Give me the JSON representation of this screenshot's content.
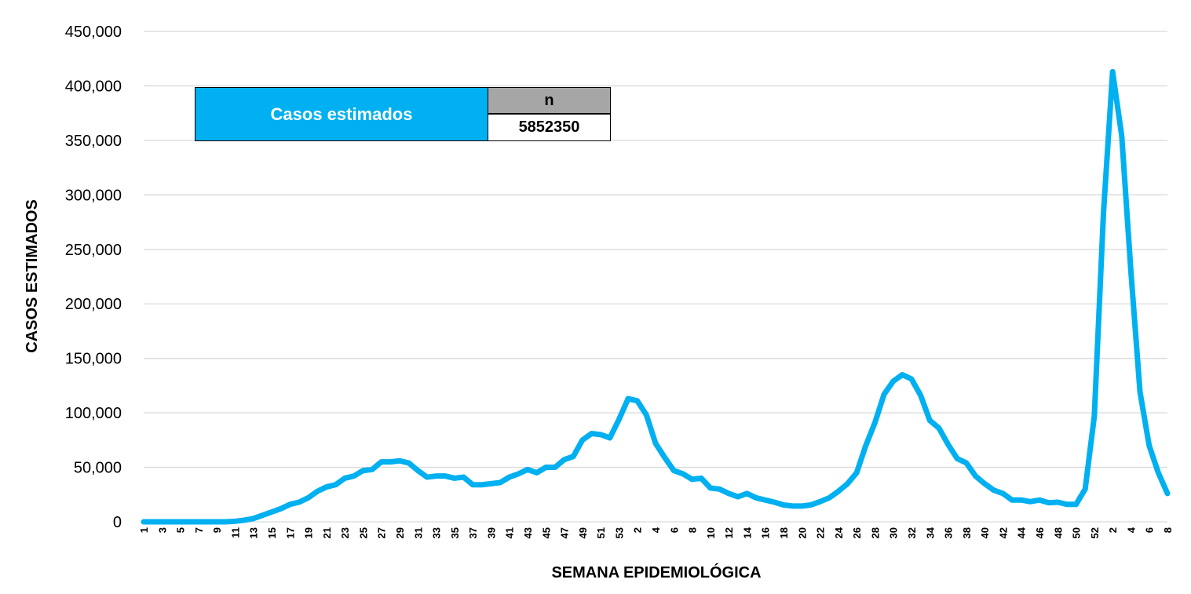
{
  "chart_data": {
    "type": "line",
    "title": "",
    "xlabel": "SEMANA EPIDEMIOLÓGICA",
    "ylabel": "CASOS ESTIMADOS",
    "ylim": [
      0,
      450000
    ],
    "yticks": [
      "0",
      "50,000",
      "100,000",
      "150,000",
      "200,000",
      "250,000",
      "300,000",
      "350,000",
      "400,000",
      "450,000"
    ],
    "grid": true,
    "line_color": "#00b0f0",
    "categories": [
      "1",
      "2",
      "3",
      "4",
      "5",
      "6",
      "7",
      "8",
      "9",
      "10",
      "11",
      "12",
      "13",
      "14",
      "15",
      "16",
      "17",
      "18",
      "19",
      "20",
      "21",
      "22",
      "23",
      "24",
      "25",
      "26",
      "27",
      "28",
      "29",
      "30",
      "31",
      "32",
      "33",
      "34",
      "35",
      "36",
      "37",
      "38",
      "39",
      "40",
      "41",
      "42",
      "43",
      "44",
      "45",
      "46",
      "47",
      "48",
      "49",
      "50",
      "51",
      "52",
      "53",
      "1",
      "2",
      "3",
      "4",
      "5",
      "6",
      "7",
      "8",
      "9",
      "10",
      "11",
      "12",
      "13",
      "14",
      "15",
      "16",
      "17",
      "18",
      "19",
      "20",
      "21",
      "22",
      "23",
      "24",
      "25",
      "26",
      "27",
      "28",
      "29",
      "30",
      "31",
      "32",
      "33",
      "34",
      "35",
      "36",
      "37",
      "38",
      "39",
      "40",
      "41",
      "42",
      "43",
      "44",
      "45",
      "46",
      "47",
      "48",
      "49",
      "50",
      "51",
      "52",
      "1",
      "2",
      "3",
      "4",
      "5",
      "6",
      "7",
      "8"
    ],
    "series": [
      {
        "values": [
          0,
          0,
          0,
          0,
          0,
          0,
          0,
          0,
          0,
          0,
          500,
          1500,
          3000,
          6000,
          9000,
          12000,
          16000,
          18000,
          22000,
          28000,
          32000,
          34000,
          40000,
          42000,
          47000,
          48000,
          55000,
          55000,
          56000,
          54000,
          47000,
          41000,
          42000,
          42000,
          40000,
          41000,
          34000,
          34000,
          35000,
          36000,
          41000,
          44000,
          48000,
          45000,
          50000,
          50000,
          57000,
          60000,
          75000,
          81000,
          80000,
          77000,
          94000,
          113000,
          111000,
          98000,
          72000,
          59000,
          47000,
          44000,
          39000,
          40000,
          31000,
          30000,
          26000,
          23000,
          26000,
          22000,
          20000,
          18000,
          15500,
          14500,
          14500,
          15500,
          18500,
          22000,
          28000,
          35000,
          45000,
          70000,
          91000,
          117000,
          129000,
          135000,
          131000,
          116000,
          93000,
          86000,
          71000,
          58000,
          54000,
          42000,
          35000,
          29000,
          26000,
          20000,
          20000,
          18500,
          20000,
          17500,
          18000,
          16000,
          16000,
          30000,
          97000,
          283000,
          413000,
          354000,
          230000,
          119000,
          70000,
          45000,
          26000
        ]
      }
    ]
  },
  "info_table": {
    "label": "Casos estimados",
    "header": "n",
    "value": "5852350"
  }
}
